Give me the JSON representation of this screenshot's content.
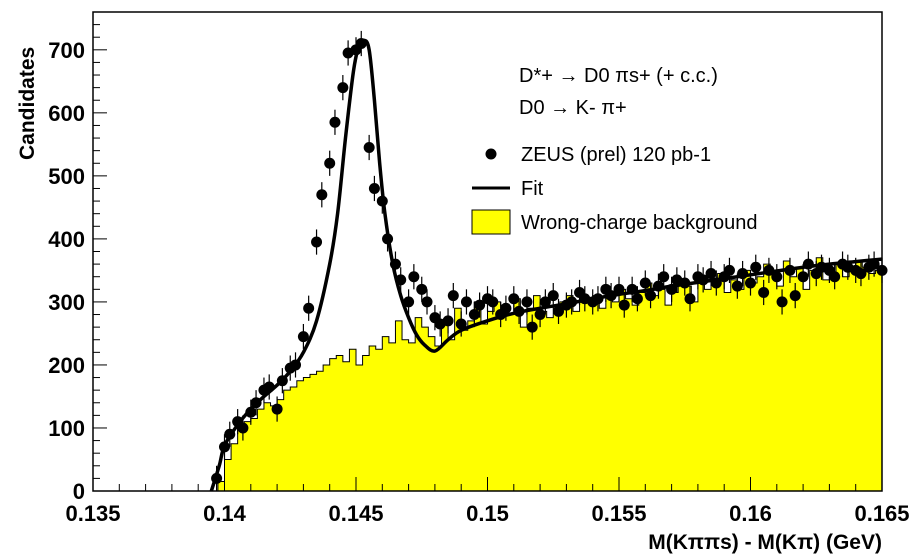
{
  "chart_data": {
    "type": "scatter",
    "xlabel": "M(Kππs) - M(Kπ) (GeV)",
    "ylabel": "Candidates",
    "xlim": [
      0.135,
      0.165
    ],
    "ylim": [
      0,
      760
    ],
    "x_ticks": [
      "0.135",
      "0.14",
      "0.145",
      "0.15",
      "0.155",
      "0.16",
      "0.165"
    ],
    "y_ticks": [
      "0",
      "100",
      "200",
      "300",
      "400",
      "500",
      "600",
      "700"
    ],
    "annotations": {
      "decay1": "D*+ → D0 πs+ (+ c.c.)",
      "decay2": "D0 → K- π+"
    },
    "legend_position": "top-right",
    "legend": {
      "data": "ZEUS (prel) 120 pb-1",
      "fit": "Fit",
      "background": "Wrong-charge background"
    },
    "colors": {
      "background_fill": "#ffff00",
      "data": "#000000",
      "fit": "#000000"
    },
    "series": [
      {
        "name": "ZEUS (prel) 120 pb-1",
        "kind": "points_with_errors",
        "x": [
          0.1397,
          0.14,
          0.1402,
          0.1405,
          0.1407,
          0.141,
          0.1412,
          0.1415,
          0.1417,
          0.142,
          0.1422,
          0.1425,
          0.1427,
          0.143,
          0.1432,
          0.1435,
          0.1437,
          0.144,
          0.1442,
          0.1445,
          0.1447,
          0.145,
          0.1452,
          0.1455,
          0.1457,
          0.146,
          0.1462,
          0.1465,
          0.1467,
          0.147,
          0.1472,
          0.1475,
          0.1477,
          0.148,
          0.1482,
          0.1485,
          0.1487,
          0.149,
          0.1492,
          0.1495,
          0.1497,
          0.15,
          0.1502,
          0.1505,
          0.1507,
          0.151,
          0.1512,
          0.1515,
          0.1517,
          0.152,
          0.1522,
          0.1525,
          0.1527,
          0.153,
          0.1532,
          0.1535,
          0.1537,
          0.154,
          0.1542,
          0.1545,
          0.1547,
          0.155,
          0.1552,
          0.1555,
          0.1557,
          0.156,
          0.1562,
          0.1565,
          0.1567,
          0.157,
          0.1572,
          0.1575,
          0.1577,
          0.158,
          0.1582,
          0.1585,
          0.1587,
          0.159,
          0.1592,
          0.1595,
          0.1597,
          0.16,
          0.1602,
          0.1605,
          0.1607,
          0.161,
          0.1612,
          0.1615,
          0.1617,
          0.162,
          0.1622,
          0.1625,
          0.1627,
          0.163,
          0.1632,
          0.1635,
          0.1637,
          0.164,
          0.1642,
          0.1645,
          0.1647,
          0.165
        ],
        "y": [
          20,
          70,
          90,
          110,
          100,
          125,
          140,
          160,
          165,
          130,
          175,
          195,
          200,
          245,
          290,
          395,
          470,
          520,
          585,
          640,
          695,
          700,
          710,
          545,
          480,
          460,
          400,
          360,
          335,
          300,
          340,
          320,
          300,
          275,
          265,
          270,
          310,
          265,
          300,
          280,
          295,
          305,
          300,
          280,
          290,
          305,
          285,
          300,
          260,
          280,
          300,
          310,
          285,
          295,
          300,
          315,
          305,
          300,
          305,
          320,
          310,
          320,
          295,
          320,
          305,
          330,
          310,
          325,
          340,
          320,
          335,
          330,
          305,
          340,
          335,
          345,
          330,
          340,
          350,
          325,
          345,
          330,
          355,
          315,
          350,
          340,
          300,
          350,
          310,
          340,
          360,
          345,
          355,
          350,
          340,
          360,
          355,
          350,
          345,
          355,
          360,
          350
        ],
        "yerr": 20
      },
      {
        "name": "Fit",
        "kind": "curve",
        "x": [
          0.1395,
          0.1398,
          0.14,
          0.1405,
          0.141,
          0.1415,
          0.142,
          0.1425,
          0.143,
          0.1435,
          0.144,
          0.1443,
          0.1446,
          0.1449,
          0.1451,
          0.1453,
          0.1455,
          0.1457,
          0.1459,
          0.1461,
          0.1464,
          0.1467,
          0.147,
          0.1473,
          0.1476,
          0.148,
          0.1485,
          0.149,
          0.15,
          0.151,
          0.152,
          0.153,
          0.154,
          0.155,
          0.156,
          0.157,
          0.158,
          0.159,
          0.16,
          0.161,
          0.162,
          0.163,
          0.164,
          0.165
        ],
        "y": [
          0,
          40,
          72,
          105,
          130,
          150,
          168,
          190,
          220,
          270,
          360,
          440,
          560,
          665,
          705,
          715,
          700,
          620,
          520,
          440,
          360,
          310,
          275,
          248,
          232,
          222,
          240,
          255,
          270,
          282,
          290,
          297,
          305,
          312,
          318,
          325,
          331,
          337,
          343,
          349,
          355,
          360,
          364,
          368
        ]
      },
      {
        "name": "Wrong-charge background",
        "kind": "histogram",
        "bin_width": 0.00025,
        "bin_start": 0.13975,
        "values": [
          15,
          50,
          75,
          100,
          110,
          115,
          130,
          140,
          135,
          145,
          160,
          165,
          175,
          180,
          185,
          190,
          200,
          210,
          215,
          205,
          225,
          200,
          215,
          230,
          225,
          245,
          235,
          270,
          240,
          235,
          275,
          260,
          245,
          230,
          265,
          240,
          290,
          255,
          270,
          300,
          265,
          285,
          300,
          295,
          280,
          305,
          260,
          290,
          310,
          285,
          275,
          290,
          300,
          310,
          285,
          305,
          300,
          310,
          290,
          315,
          300,
          320,
          305,
          295,
          315,
          330,
          310,
          320,
          295,
          315,
          335,
          325,
          300,
          340,
          320,
          330,
          345,
          315,
          335,
          320,
          350,
          330,
          340,
          360,
          345,
          325,
          365,
          340,
          355,
          320,
          350,
          370,
          335,
          345,
          360,
          340,
          350,
          365,
          355,
          345,
          350,
          340,
          360,
          355,
          370,
          345,
          360,
          350,
          365
        ]
      }
    ]
  }
}
